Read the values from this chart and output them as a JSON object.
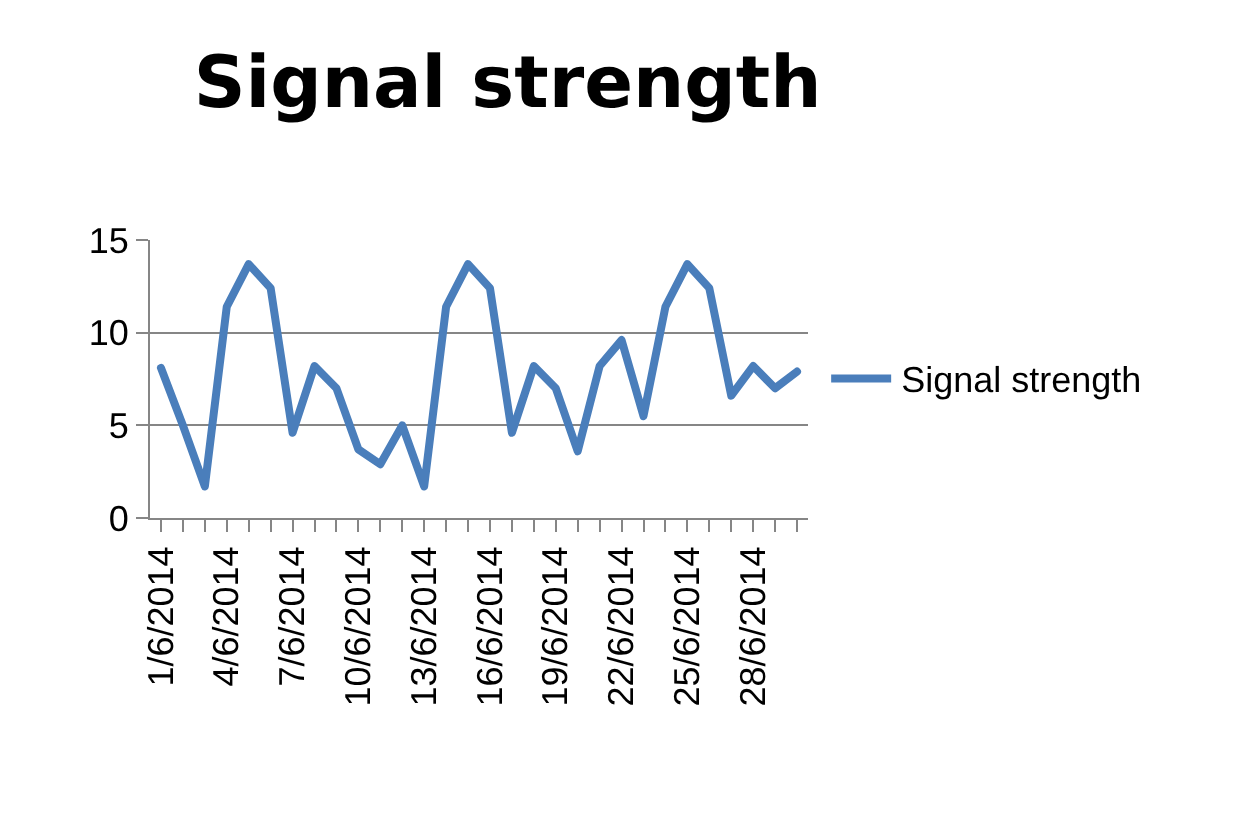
{
  "chart_data": {
    "type": "line",
    "title": "Signal strength",
    "categories": [
      "1/6/2014",
      null,
      null,
      "4/6/2014",
      null,
      null,
      "7/6/2014",
      null,
      null,
      "10/6/2014",
      null,
      null,
      "13/6/2014",
      null,
      null,
      "16/6/2014",
      null,
      null,
      "19/6/2014",
      null,
      null,
      "22/6/2014",
      null,
      null,
      "25/6/2014",
      null,
      null,
      "28/6/2014",
      null,
      null
    ],
    "series": [
      {
        "name": "Signal strength",
        "color": "#4a7ebb",
        "values": [
          8.1,
          5.0,
          1.7,
          11.4,
          13.7,
          12.4,
          4.6,
          8.2,
          7.0,
          3.7,
          2.9,
          5.0,
          1.7,
          11.4,
          13.7,
          12.4,
          4.6,
          8.2,
          7.0,
          3.6,
          8.2,
          9.6,
          5.5,
          11.4,
          13.7,
          12.4,
          6.6,
          8.2,
          7.0,
          7.9
        ]
      }
    ],
    "ylim": [
      0,
      15
    ],
    "yticks": [
      0,
      5,
      10,
      15
    ],
    "grid": "y",
    "legend": "right",
    "marker": "none",
    "line_style": "solid"
  }
}
